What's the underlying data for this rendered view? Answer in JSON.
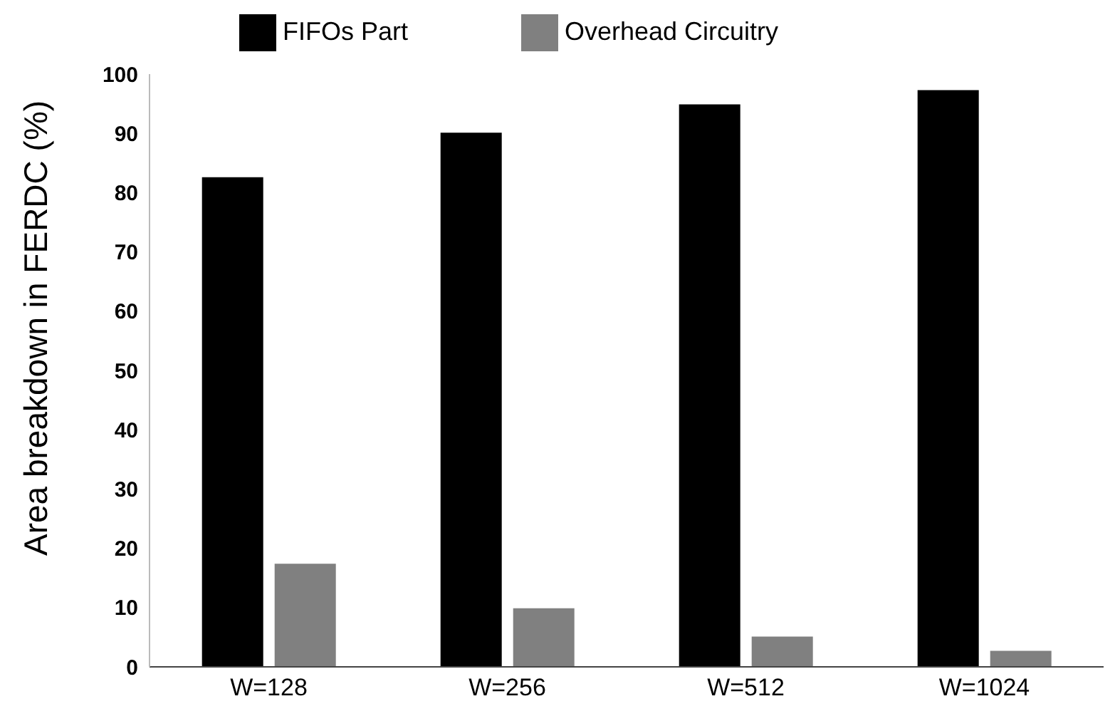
{
  "chart_data": {
    "type": "bar",
    "ylabel": "Area breakdown  in FERDC (%)",
    "categories": [
      "W=128",
      "W=256",
      "W=512",
      "W=1024"
    ],
    "series": [
      {
        "name": "FIFOs Part",
        "color": "#000000",
        "values": [
          82.6,
          90.1,
          94.9,
          97.3
        ]
      },
      {
        "name": "Overhead Circuitry",
        "color": "#808080",
        "values": [
          17.4,
          9.9,
          5.1,
          2.7
        ]
      }
    ],
    "ylim": [
      0,
      100
    ],
    "yticks": [
      0,
      10,
      20,
      30,
      40,
      50,
      60,
      70,
      80,
      90,
      100
    ],
    "grid": false,
    "legend": "top"
  }
}
